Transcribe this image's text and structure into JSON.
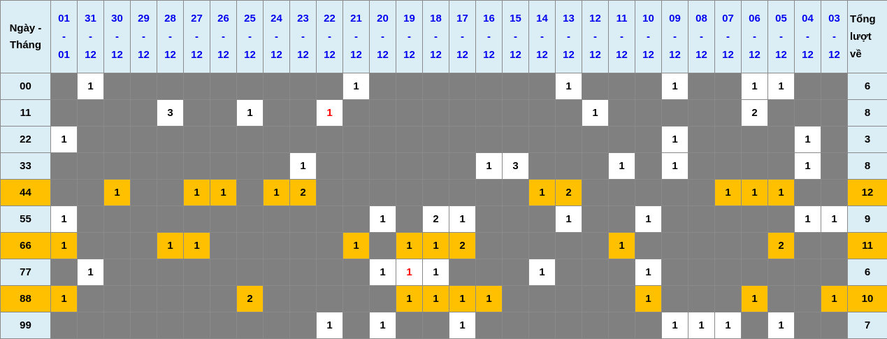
{
  "table": {
    "dash": "-",
    "corner": {
      "line1": "Ngày -",
      "line2": "Tháng"
    },
    "total_header": {
      "line1": "Tổng",
      "line2": "lượt",
      "line3": "về"
    },
    "colors": {
      "header_bg": "#DBEEF6",
      "header_date_text": "#0202EE",
      "empty_cell_bg": "#808080",
      "filled_cell_bg": "#FFFFFF",
      "highlight_bg": "#FFC000",
      "red_text": "#FF0000",
      "grid_border": "#8A8A8A"
    },
    "columns": [
      {
        "day": "01",
        "month": "01"
      },
      {
        "day": "31",
        "month": "12"
      },
      {
        "day": "30",
        "month": "12"
      },
      {
        "day": "29",
        "month": "12"
      },
      {
        "day": "28",
        "month": "12"
      },
      {
        "day": "27",
        "month": "12"
      },
      {
        "day": "26",
        "month": "12"
      },
      {
        "day": "25",
        "month": "12"
      },
      {
        "day": "24",
        "month": "12"
      },
      {
        "day": "23",
        "month": "12"
      },
      {
        "day": "22",
        "month": "12"
      },
      {
        "day": "21",
        "month": "12"
      },
      {
        "day": "20",
        "month": "12"
      },
      {
        "day": "19",
        "month": "12"
      },
      {
        "day": "18",
        "month": "12"
      },
      {
        "day": "17",
        "month": "12"
      },
      {
        "day": "16",
        "month": "12"
      },
      {
        "day": "15",
        "month": "12"
      },
      {
        "day": "14",
        "month": "12"
      },
      {
        "day": "13",
        "month": "12"
      },
      {
        "day": "12",
        "month": "12"
      },
      {
        "day": "11",
        "month": "12"
      },
      {
        "day": "10",
        "month": "12"
      },
      {
        "day": "09",
        "month": "12"
      },
      {
        "day": "08",
        "month": "12"
      },
      {
        "day": "07",
        "month": "12"
      },
      {
        "day": "06",
        "month": "12"
      },
      {
        "day": "05",
        "month": "12"
      },
      {
        "day": "04",
        "month": "12"
      },
      {
        "day": "03",
        "month": "12"
      }
    ],
    "rows": [
      {
        "label": "00",
        "highlight": false,
        "total": "6",
        "cells": [
          {
            "col": 1,
            "val": "1"
          },
          {
            "col": 11,
            "val": "1"
          },
          {
            "col": 19,
            "val": "1"
          },
          {
            "col": 23,
            "val": "1"
          },
          {
            "col": 26,
            "val": "1"
          },
          {
            "col": 27,
            "val": "1"
          }
        ]
      },
      {
        "label": "11",
        "highlight": false,
        "total": "8",
        "cells": [
          {
            "col": 4,
            "val": "3"
          },
          {
            "col": 7,
            "val": "1"
          },
          {
            "col": 10,
            "val": "1",
            "red": true
          },
          {
            "col": 20,
            "val": "1"
          },
          {
            "col": 26,
            "val": "2"
          }
        ]
      },
      {
        "label": "22",
        "highlight": false,
        "total": "3",
        "cells": [
          {
            "col": 0,
            "val": "1"
          },
          {
            "col": 23,
            "val": "1"
          },
          {
            "col": 28,
            "val": "1"
          }
        ]
      },
      {
        "label": "33",
        "highlight": false,
        "total": "8",
        "cells": [
          {
            "col": 9,
            "val": "1"
          },
          {
            "col": 16,
            "val": "1"
          },
          {
            "col": 17,
            "val": "3"
          },
          {
            "col": 21,
            "val": "1"
          },
          {
            "col": 23,
            "val": "1"
          },
          {
            "col": 28,
            "val": "1"
          }
        ]
      },
      {
        "label": "44",
        "highlight": true,
        "total": "12",
        "cells": [
          {
            "col": 2,
            "val": "1"
          },
          {
            "col": 5,
            "val": "1"
          },
          {
            "col": 6,
            "val": "1"
          },
          {
            "col": 8,
            "val": "1"
          },
          {
            "col": 9,
            "val": "2"
          },
          {
            "col": 18,
            "val": "1"
          },
          {
            "col": 19,
            "val": "2"
          },
          {
            "col": 25,
            "val": "1"
          },
          {
            "col": 26,
            "val": "1"
          },
          {
            "col": 27,
            "val": "1"
          }
        ]
      },
      {
        "label": "55",
        "highlight": false,
        "total": "9",
        "cells": [
          {
            "col": 0,
            "val": "1"
          },
          {
            "col": 12,
            "val": "1"
          },
          {
            "col": 14,
            "val": "2"
          },
          {
            "col": 15,
            "val": "1"
          },
          {
            "col": 19,
            "val": "1"
          },
          {
            "col": 22,
            "val": "1"
          },
          {
            "col": 28,
            "val": "1"
          },
          {
            "col": 29,
            "val": "1"
          }
        ]
      },
      {
        "label": "66",
        "highlight": true,
        "total": "11",
        "cells": [
          {
            "col": 0,
            "val": "1"
          },
          {
            "col": 4,
            "val": "1"
          },
          {
            "col": 5,
            "val": "1"
          },
          {
            "col": 11,
            "val": "1"
          },
          {
            "col": 13,
            "val": "1"
          },
          {
            "col": 14,
            "val": "1"
          },
          {
            "col": 15,
            "val": "2"
          },
          {
            "col": 21,
            "val": "1"
          },
          {
            "col": 27,
            "val": "2"
          }
        ]
      },
      {
        "label": "77",
        "highlight": false,
        "total": "6",
        "cells": [
          {
            "col": 1,
            "val": "1"
          },
          {
            "col": 12,
            "val": "1"
          },
          {
            "col": 13,
            "val": "1",
            "red": true
          },
          {
            "col": 14,
            "val": "1"
          },
          {
            "col": 18,
            "val": "1"
          },
          {
            "col": 22,
            "val": "1"
          }
        ]
      },
      {
        "label": "88",
        "highlight": true,
        "total": "10",
        "cells": [
          {
            "col": 0,
            "val": "1"
          },
          {
            "col": 7,
            "val": "2"
          },
          {
            "col": 13,
            "val": "1"
          },
          {
            "col": 14,
            "val": "1"
          },
          {
            "col": 15,
            "val": "1"
          },
          {
            "col": 16,
            "val": "1"
          },
          {
            "col": 22,
            "val": "1"
          },
          {
            "col": 26,
            "val": "1"
          },
          {
            "col": 29,
            "val": "1"
          }
        ]
      },
      {
        "label": "99",
        "highlight": false,
        "total": "7",
        "cells": [
          {
            "col": 10,
            "val": "1"
          },
          {
            "col": 12,
            "val": "1"
          },
          {
            "col": 15,
            "val": "1"
          },
          {
            "col": 23,
            "val": "1"
          },
          {
            "col": 24,
            "val": "1"
          },
          {
            "col": 25,
            "val": "1"
          },
          {
            "col": 27,
            "val": "1"
          }
        ]
      }
    ]
  }
}
